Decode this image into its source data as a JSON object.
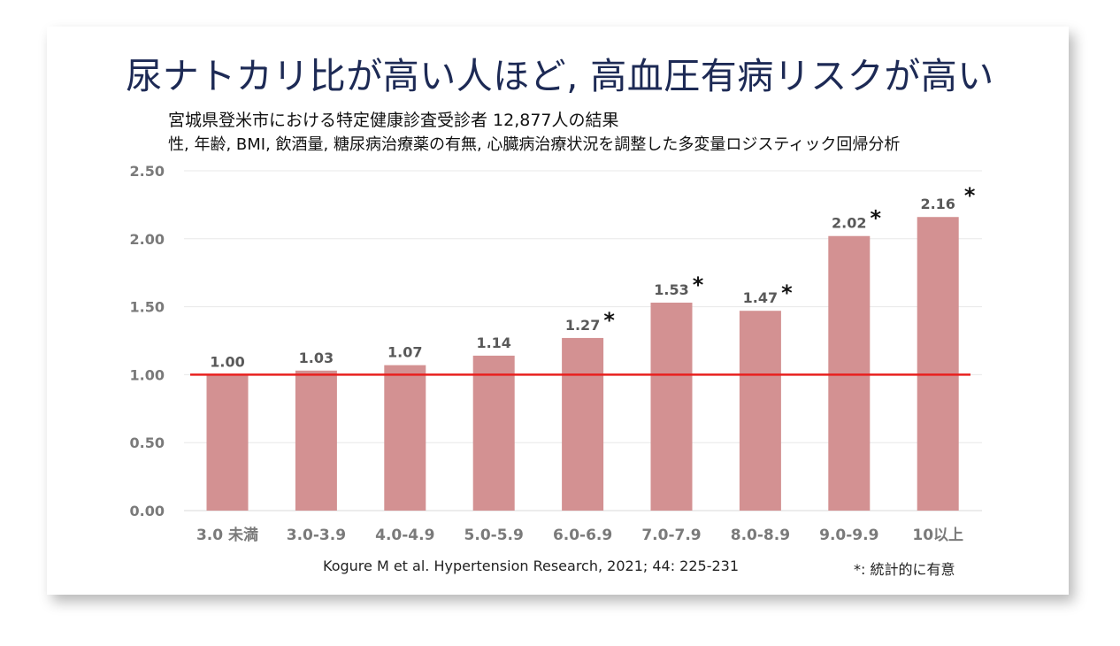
{
  "title": "尿ナトカリ比が高い人ほど, 高血圧有病リスクが高い",
  "subtitle1": "宮城県登米市における特定健康診査受診者 12,877人の結果",
  "subtitle2": "性, 年齢, BMI, 飲酒量, 糖尿病治療薬の有無, 心臓病治療状況を調整した多変量ロジスティック回帰分析",
  "citation": "Kogure M et al. Hypertension Research, 2021; 44: 225-231",
  "significance_note": "*: 統計的に有意",
  "chart_data": {
    "type": "bar",
    "categories": [
      "3.0 未満",
      "3.0-3.9",
      "4.0-4.9",
      "5.0-5.9",
      "6.0-6.9",
      "7.0-7.9",
      "8.0-8.9",
      "9.0-9.9",
      "10以上"
    ],
    "values": [
      1.0,
      1.03,
      1.07,
      1.14,
      1.27,
      1.53,
      1.47,
      2.02,
      2.16
    ],
    "data_labels": [
      "1.00",
      "1.03",
      "1.07",
      "1.14",
      "1.27",
      "1.53",
      "1.47",
      "2.02",
      "2.16"
    ],
    "significant": [
      false,
      false,
      false,
      false,
      true,
      true,
      true,
      true,
      true
    ],
    "significance_marker": "*",
    "ylim": [
      0,
      2.5
    ],
    "yticks": [
      "0.00",
      "0.50",
      "1.00",
      "1.50",
      "2.00",
      "2.50"
    ],
    "reference_line": 1.0,
    "grid": true,
    "bar_color": "#d39192",
    "reference_color": "#e8201e"
  }
}
